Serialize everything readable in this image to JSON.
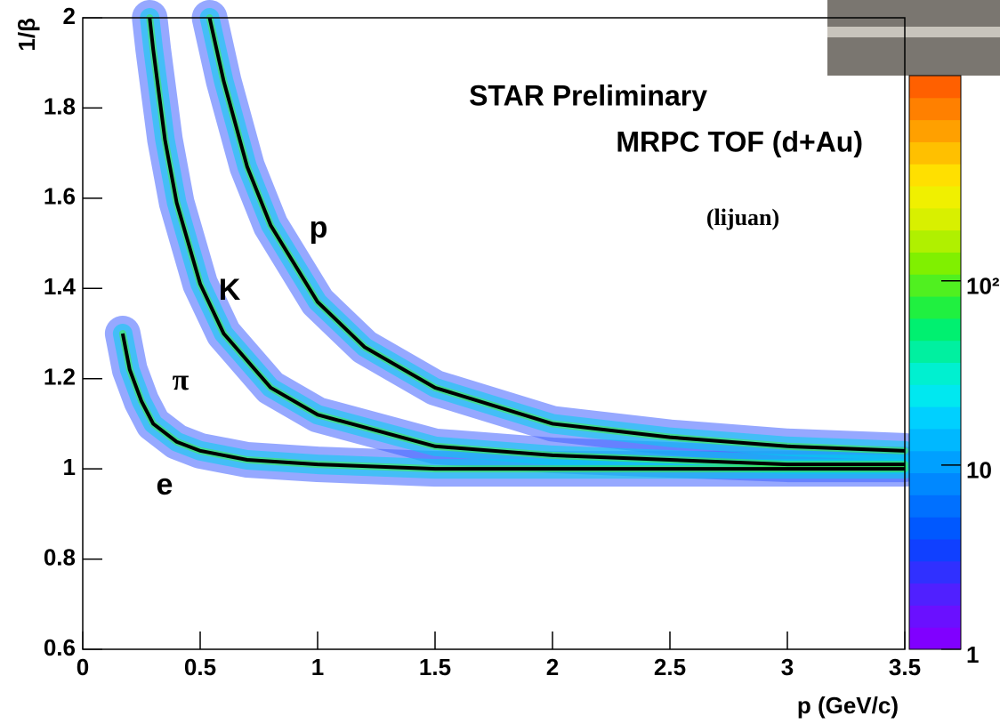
{
  "chart_data": {
    "type": "line",
    "xlabel": "p (GeV/c)",
    "ylabel": "1/β",
    "xlim": [
      0,
      3.5
    ],
    "xticks": [
      0,
      0.5,
      1,
      1.5,
      2,
      2.5,
      3,
      3.5
    ],
    "ylim": [
      0.6,
      2
    ],
    "yticks": [
      0.6,
      0.8,
      1,
      1.2,
      1.4,
      1.6,
      1.8,
      2
    ],
    "series": [
      {
        "color": "#000000",
        "x": [
          0.17,
          0.2,
          0.25,
          0.3,
          0.4,
          0.5,
          0.7,
          1,
          1.5,
          2,
          2.5,
          3,
          3.5
        ],
        "values": [
          1.3,
          1.22,
          1.15,
          1.1,
          1.06,
          1.04,
          1.02,
          1.01,
          1.0,
          1.0,
          1.0,
          1.0,
          1.0
        ]
      },
      {
        "color": "#000000",
        "x": [
          0.285,
          0.3,
          0.35,
          0.4,
          0.5,
          0.6,
          0.8,
          1,
          1.5,
          2,
          2.5,
          3,
          3.5
        ],
        "values": [
          2.0,
          1.93,
          1.73,
          1.59,
          1.41,
          1.3,
          1.18,
          1.12,
          1.05,
          1.03,
          1.02,
          1.01,
          1.01
        ]
      },
      {
        "color": "#000000",
        "x": [
          0.54,
          0.6,
          0.7,
          0.8,
          1,
          1.2,
          1.5,
          2,
          2.5,
          3,
          3.5
        ],
        "values": [
          2.0,
          1.86,
          1.67,
          1.54,
          1.37,
          1.27,
          1.18,
          1.1,
          1.07,
          1.05,
          1.04
        ]
      }
    ],
    "annotations": [
      {
        "text": "STAR Preliminary",
        "color": "#ff0000"
      },
      {
        "text": "MRPC TOF (d+Au)",
        "color": "#000000"
      },
      {
        "text": "(lijuan)",
        "color": "#000000"
      },
      {
        "text": "p",
        "color": "#000000"
      },
      {
        "text": "K",
        "color": "#000000"
      },
      {
        "text": "π",
        "color": "#000000"
      },
      {
        "text": "e",
        "color": "#000000"
      }
    ],
    "colorbar": {
      "log": true,
      "zlim": [
        1,
        1300
      ],
      "ticks": [
        1,
        10,
        {
          "value": 100,
          "label": "10²"
        }
      ],
      "colors": [
        "#8000ff",
        "#6a10ff",
        "#5020ff",
        "#3030ff",
        "#1040ff",
        "#0058ff",
        "#0070ff",
        "#0088ff",
        "#00a0ff",
        "#00b8ff",
        "#00d0ff",
        "#00e8f0",
        "#00f0d0",
        "#00f0a0",
        "#00f070",
        "#20f040",
        "#50f020",
        "#80f000",
        "#b0f000",
        "#d8f000",
        "#f0f000",
        "#ffe000",
        "#ffc000",
        "#ffa000",
        "#ff8000",
        "#ff6000"
      ]
    }
  }
}
